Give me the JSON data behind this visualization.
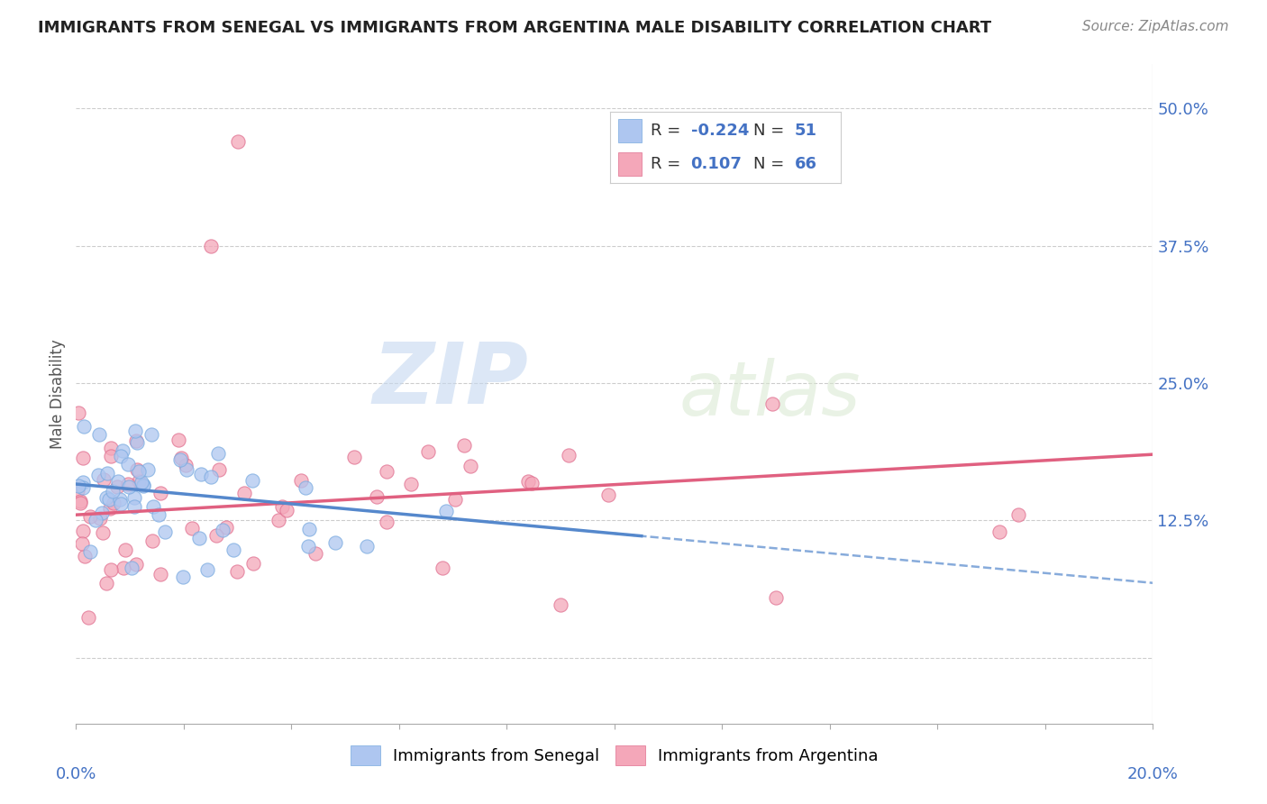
{
  "title": "IMMIGRANTS FROM SENEGAL VS IMMIGRANTS FROM ARGENTINA MALE DISABILITY CORRELATION CHART",
  "source": "Source: ZipAtlas.com",
  "ylabel": "Male Disability",
  "xlim": [
    0.0,
    0.2
  ],
  "ylim": [
    -0.06,
    0.54
  ],
  "yticks": [
    0.0,
    0.125,
    0.25,
    0.375,
    0.5
  ],
  "ytick_labels": [
    "",
    "12.5%",
    "25.0%",
    "37.5%",
    "50.0%"
  ],
  "xtick_labels_ends": [
    "0.0%",
    "20.0%"
  ],
  "legend_entries": [
    {
      "label": "Immigrants from Senegal",
      "color": "#aec6f0",
      "edge_color": "#7aabe0",
      "R": -0.224,
      "N": 51
    },
    {
      "label": "Immigrants from Argentina",
      "color": "#f4a7b9",
      "edge_color": "#e07090",
      "R": 0.107,
      "N": 66
    }
  ],
  "senegal_color": "#aec6f0",
  "senegal_edge_color": "#7aabe0",
  "argentina_color": "#f4a7b9",
  "argentina_edge_color": "#e07090",
  "senegal_line_color": "#5588cc",
  "argentina_line_color": "#e06080",
  "title_color": "#222222",
  "axis_label_color": "#4472c4",
  "ylabel_color": "#555555",
  "watermark_text": "ZIP",
  "watermark_text2": "atlas",
  "background_color": "#ffffff",
  "grid_color": "#c8c8c8",
  "senegal_R": -0.224,
  "senegal_N": 51,
  "argentina_R": 0.107,
  "argentina_N": 66
}
